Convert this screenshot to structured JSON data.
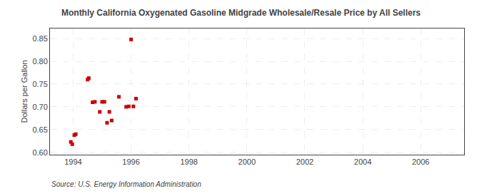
{
  "chart_data": {
    "type": "scatter",
    "title": "Monthly California Oxygenated Gasoline Midgrade Wholesale/Resale Price by All Sellers",
    "ylabel": "Dollars per Gallon",
    "source": "Source: U.S. Energy Information Administration",
    "color": "#cc0000",
    "marker": "square",
    "grid": true,
    "xlim": [
      1993.2,
      2007.5
    ],
    "ylim": [
      0.595,
      0.872
    ],
    "xticks": [
      1994,
      1996,
      1998,
      2000,
      2002,
      2004,
      2006
    ],
    "yticks": [
      {
        "value": 0.6,
        "label": "0.60"
      },
      0.65,
      {
        "value": 0.7,
        "label": "0.70"
      },
      0.75,
      {
        "value": 0.8,
        "label": "0.80"
      },
      0.85
    ],
    "x": [
      1993.92,
      1993.97,
      1994.04,
      1994.09,
      1994.5,
      1994.54,
      1994.67,
      1994.75,
      1994.92,
      1995.0,
      1995.08,
      1995.17,
      1995.25,
      1995.33,
      1995.58,
      1995.83,
      1995.92,
      1996.0,
      1996.08,
      1996.17
    ],
    "values": [
      0.623,
      0.618,
      0.638,
      0.64,
      0.76,
      0.763,
      0.71,
      0.711,
      0.689,
      0.711,
      0.711,
      0.665,
      0.689,
      0.67,
      0.722,
      0.7,
      0.701,
      0.848,
      0.701,
      0.718
    ]
  }
}
